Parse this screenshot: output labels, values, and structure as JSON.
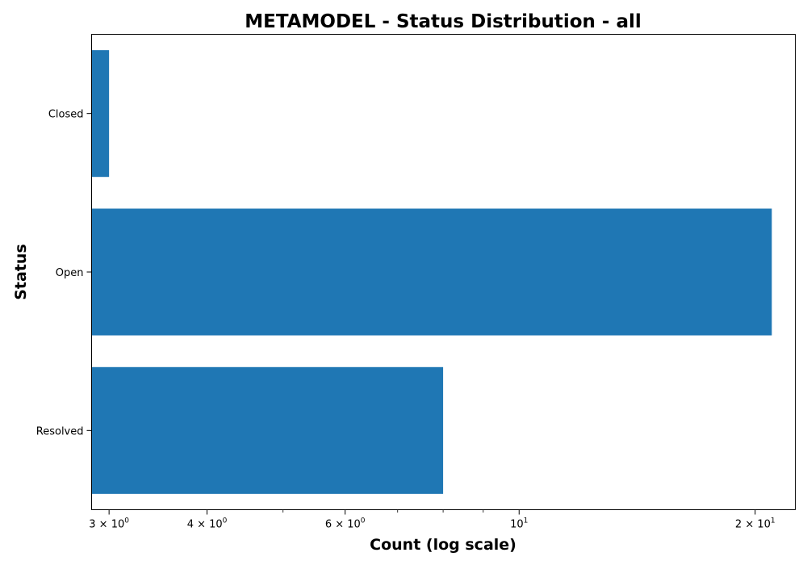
{
  "chart_data": {
    "type": "bar",
    "orientation": "horizontal",
    "title": "METAMODEL - Status Distribution - all",
    "xlabel": "Count (log scale)",
    "ylabel": "Status",
    "categories": [
      "Closed",
      "Open",
      "Resolved"
    ],
    "values": [
      3,
      21,
      8
    ],
    "color": "#1f77b4",
    "xscale": "log",
    "xlim": [
      2.85,
      22.5
    ],
    "major_ticks": [
      {
        "value": 3,
        "base": "3 × 10",
        "exp": "0"
      },
      {
        "value": 4,
        "base": "4 × 10",
        "exp": "0"
      },
      {
        "value": 6,
        "base": "6 × 10",
        "exp": "0"
      },
      {
        "value": 10,
        "base": "10",
        "exp": "1"
      },
      {
        "value": 20,
        "base": "2 × 10",
        "exp": "1"
      }
    ],
    "minor_ticks": [
      5,
      7,
      8,
      9
    ],
    "grid": false,
    "legend": "none"
  }
}
